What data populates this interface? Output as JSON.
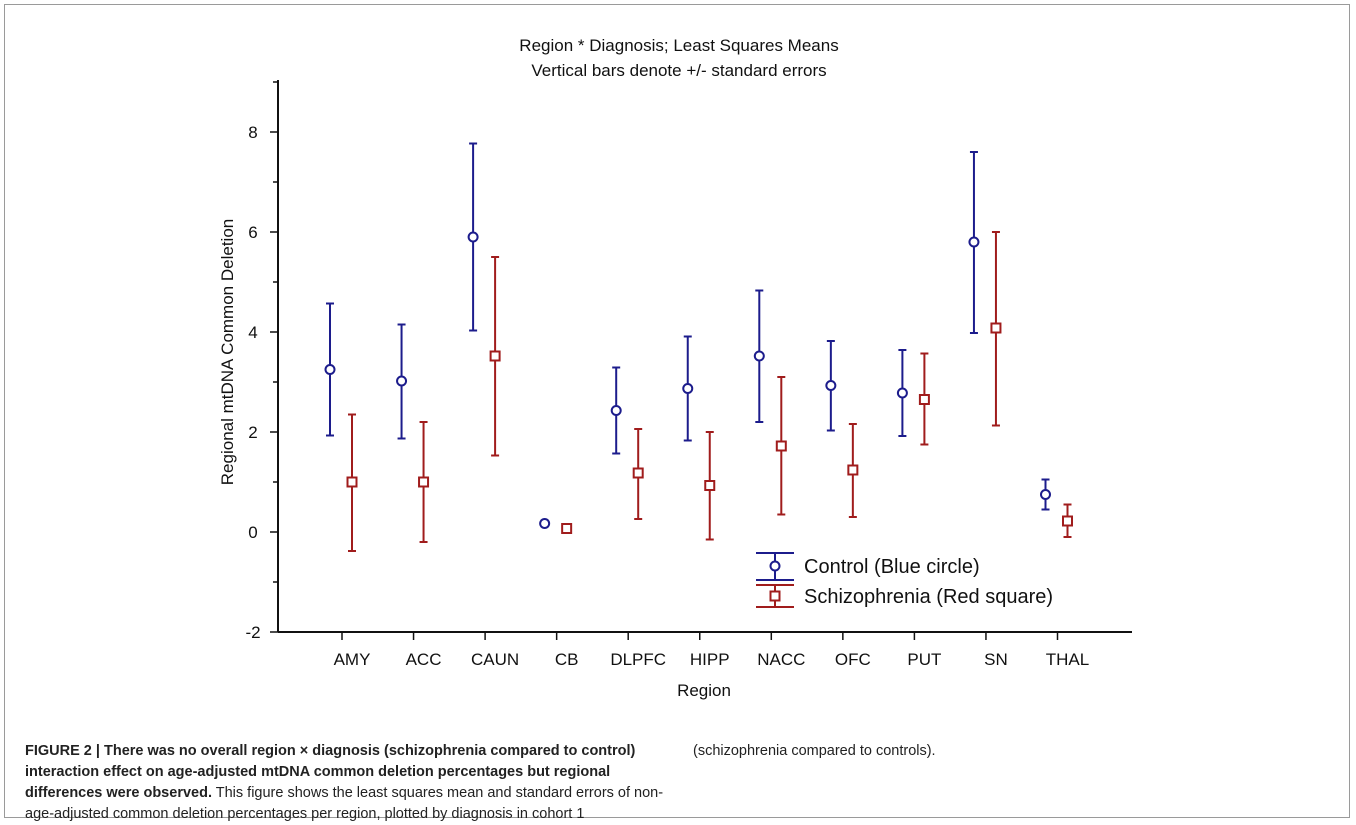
{
  "chart_data": {
    "type": "scatter",
    "title": "Region * Diagnosis; Least Squares Means",
    "subtitle": "Vertical bars denote +/- standard errors",
    "xlabel": "Region",
    "ylabel": "Regional mtDNA Common Deletion",
    "categories": [
      "AMY",
      "ACC",
      "CAUN",
      "CB",
      "DLPFC",
      "HIPP",
      "NACC",
      "OFC",
      "PUT",
      "SN",
      "THAL"
    ],
    "ylim": [
      -2,
      8.9
    ],
    "yticks": [
      -2,
      0,
      2,
      4,
      6,
      8
    ],
    "grid": false,
    "legend_position": "bottom-right",
    "series": [
      {
        "name": "Control (Blue circle)",
        "color": "#1c1c8c",
        "marker": "circle",
        "values": [
          3.25,
          3.02,
          5.9,
          0.17,
          2.43,
          2.87,
          3.52,
          2.93,
          2.78,
          5.8,
          0.75
        ],
        "error_low": [
          1.93,
          1.87,
          4.03,
          0.11,
          1.57,
          1.83,
          2.2,
          2.03,
          1.92,
          3.98,
          0.45
        ],
        "error_high": [
          4.57,
          4.15,
          7.77,
          0.23,
          3.29,
          3.91,
          4.83,
          3.82,
          3.64,
          7.6,
          1.05
        ]
      },
      {
        "name": "Schizophrenia (Red square)",
        "color": "#a01c1c",
        "marker": "square",
        "values": [
          1.0,
          1.0,
          3.52,
          0.07,
          1.18,
          0.93,
          1.72,
          1.24,
          2.65,
          4.08,
          0.22
        ],
        "error_low": [
          -0.38,
          -0.2,
          1.53,
          0.03,
          0.26,
          -0.15,
          0.35,
          0.3,
          1.75,
          2.13,
          -0.1
        ],
        "error_high": [
          2.35,
          2.2,
          5.5,
          0.11,
          2.06,
          2.0,
          3.1,
          2.16,
          3.57,
          6.0,
          0.55
        ]
      }
    ]
  },
  "caption": {
    "bold": "FIGURE 2 | There was no overall region × diagnosis (schizophrenia compared to control) interaction effect on age-adjusted mtDNA common deletion percentages but regional differences were observed.",
    "text": " This figure shows the least squares mean and standard errors of non-age-adjusted common deletion percentages per region, plotted by diagnosis in cohort 1 (schizophrenia compared to controls)."
  }
}
